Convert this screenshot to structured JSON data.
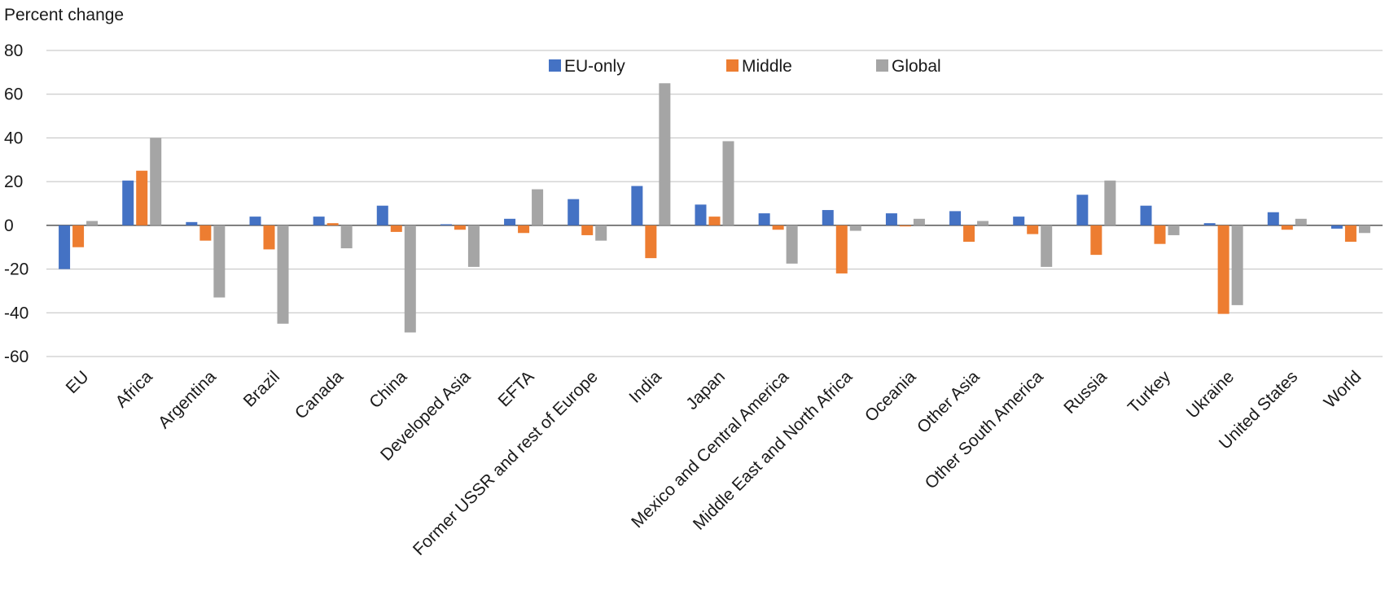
{
  "chart_data": {
    "type": "bar",
    "title": "",
    "ylabel": "Percent change",
    "xlabel": "",
    "ylim": [
      -60,
      80
    ],
    "yticks": [
      80,
      60,
      40,
      20,
      0,
      -20,
      -40,
      -60
    ],
    "ytick_labels": [
      "80",
      "60",
      "40",
      "20",
      "0",
      "-20",
      "-40",
      "-60"
    ],
    "grid": true,
    "legend_position": "top-center",
    "categories": [
      "EU",
      "Africa",
      "Argentina",
      "Brazil",
      "Canada",
      "China",
      "Developed Asia",
      "EFTA",
      "Former USSR and rest of Europe",
      "India",
      "Japan",
      "Mexico and Central America",
      "Middle East and North Africa",
      "Oceania",
      "Other Asia",
      "Other South America",
      "Russia",
      "Turkey",
      "Ukraine",
      "United States",
      "World"
    ],
    "series": [
      {
        "name": "EU-only",
        "color": "#4472C4",
        "values": [
          -20,
          20.5,
          1.5,
          4,
          4,
          9,
          0.5,
          3,
          12,
          18,
          9.5,
          5.5,
          7,
          5.5,
          6.5,
          4,
          14,
          9,
          1,
          6,
          -1.5
        ]
      },
      {
        "name": "Middle",
        "color": "#ED7D31",
        "values": [
          -10,
          25,
          -7,
          -11,
          1,
          -3,
          -2,
          -3.5,
          -4.5,
          -15,
          4,
          -2,
          -22,
          -0.5,
          -7.5,
          -4,
          -13.5,
          -8.5,
          -40.5,
          -2,
          -7.5
        ]
      },
      {
        "name": "Global",
        "color": "#A5A5A5",
        "values": [
          2,
          40,
          -33,
          -45,
          -10.5,
          -49,
          -19,
          16.5,
          -7,
          65,
          38.5,
          -17.5,
          -2.5,
          3,
          2,
          -19,
          20.5,
          -4.5,
          -36.5,
          3,
          -3.5
        ]
      }
    ]
  }
}
